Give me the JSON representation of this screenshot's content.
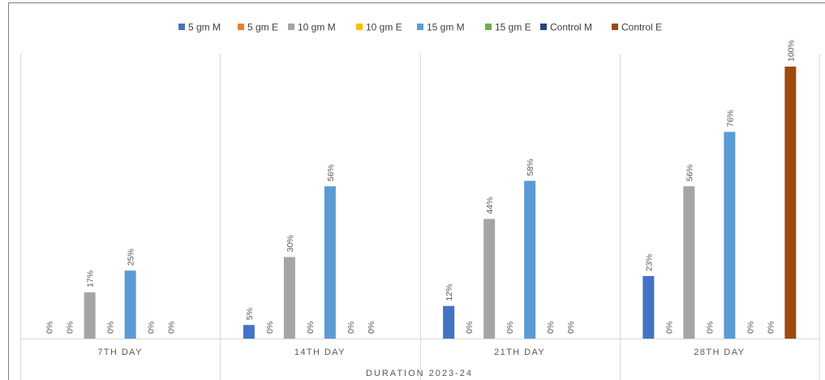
{
  "chart_data": {
    "type": "bar",
    "title": "",
    "xlabel": "DURATION 2023-24",
    "ylabel": "",
    "ylim": [
      0,
      100
    ],
    "grid": false,
    "legend_position": "top",
    "categories": [
      "7TH DAY",
      "14TH DAY",
      "21TH DAY",
      "28TH DAY"
    ],
    "series": [
      {
        "name": "5 gm M",
        "color": "#4472c4",
        "values": [
          0,
          5,
          12,
          23
        ],
        "labels": [
          "0%",
          "5%",
          "12%",
          "23%"
        ]
      },
      {
        "name": "5 gm E",
        "color": "#ed7d31",
        "values": [
          0,
          0,
          0,
          0
        ],
        "labels": [
          "0%",
          "0%",
          "0%",
          "0%"
        ]
      },
      {
        "name": "10 gm M",
        "color": "#a5a5a5",
        "values": [
          17,
          30,
          44,
          56
        ],
        "labels": [
          "17%",
          "30%",
          "44%",
          "56%"
        ]
      },
      {
        "name": "10 gm E",
        "color": "#ffc000",
        "values": [
          0,
          0,
          0,
          0
        ],
        "labels": [
          "0%",
          "0%",
          "0%",
          "0%"
        ]
      },
      {
        "name": "15 gm M",
        "color": "#5b9bd5",
        "values": [
          25,
          56,
          58,
          76
        ],
        "labels": [
          "25%",
          "56%",
          "58%",
          "76%"
        ]
      },
      {
        "name": "15 gm E",
        "color": "#70ad47",
        "values": [
          0,
          0,
          0,
          0
        ],
        "labels": [
          "0%",
          "0%",
          "0%",
          "0%"
        ]
      },
      {
        "name": "Control M",
        "color": "#264478",
        "values": [
          0,
          0,
          0,
          0
        ],
        "labels": [
          "0%",
          "0%",
          "0%",
          "0%"
        ]
      },
      {
        "name": "Control E",
        "color": "#9e480e",
        "values": [
          null,
          null,
          null,
          100
        ],
        "labels": [
          null,
          null,
          null,
          "100%"
        ]
      }
    ]
  }
}
